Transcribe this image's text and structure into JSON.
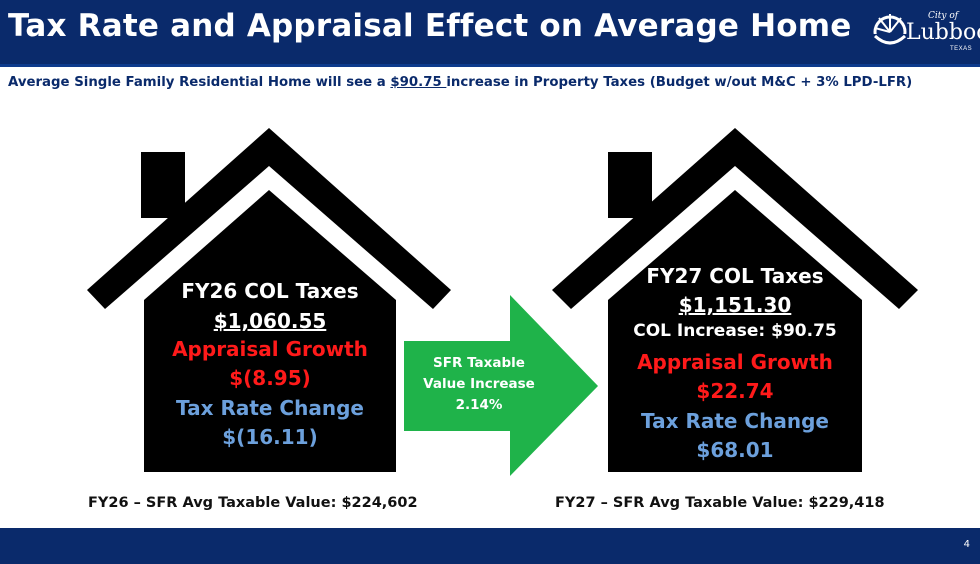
{
  "header": {
    "title": "Tax Rate and Appraisal Effect on Average Home",
    "logo": {
      "small": "City of",
      "name": "Lubbock",
      "state": "TEXAS"
    }
  },
  "subtitle": {
    "prefix": "Average Single Family Residential Home will see a ",
    "amount": "$90.75 ",
    "suffix": "increase in Property Taxes (Budget w/out M&C + 3% LPD-LFR)"
  },
  "house_left": {
    "title": "FY26 COL Taxes",
    "total": "$1,060.55",
    "appraisal_label": "Appraisal Growth",
    "appraisal_value": "$(8.95)",
    "rate_label": "Tax Rate Change",
    "rate_value": "$(16.11)"
  },
  "arrow": {
    "line1": "SFR Taxable",
    "line2": "Value Increase",
    "line3": "2.14%"
  },
  "house_right": {
    "title": "FY27 COL Taxes",
    "total": "$1,151.30",
    "increase": "COL Increase: $90.75",
    "appraisal_label": "Appraisal Growth",
    "appraisal_value": "$22.74",
    "rate_label": "Tax Rate Change",
    "rate_value": "$68.01"
  },
  "captions": {
    "left": "FY26 – SFR Avg Taxable Value: $224,602",
    "right": "FY27 – SFR Avg Taxable Value: $229,418"
  },
  "footer": {
    "page": "4"
  },
  "colors": {
    "header_bg": "#0a2a6b",
    "house": "#000000",
    "arrow": "#1fb34a",
    "red_text": "#ff1a1a",
    "blue_text": "#6ca0dc"
  }
}
